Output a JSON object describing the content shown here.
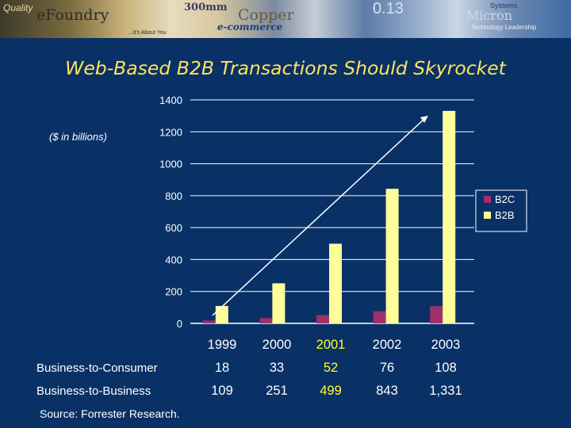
{
  "banner": {
    "t1": "Quality",
    "t2": "eFoundry",
    "t3": "300mm",
    "t4": "Copper",
    "t5": "e-commerce",
    "t6": "...it's About You",
    "t7": "Micron",
    "t8": "Technology Leadership",
    "t9": "0.13",
    "t10": "Systems"
  },
  "title": "Web-Based B2B Transactions Should Skyrocket",
  "unit_label": "($ in billions)",
  "source": "Source: Forrester Research.",
  "colors": {
    "b2c": "#a0306a",
    "b2b": "#fdfd9a",
    "highlight": "#ffff33"
  },
  "chart_data": {
    "type": "bar",
    "categories": [
      "1999",
      "2000",
      "2001",
      "2002",
      "2003"
    ],
    "series": [
      {
        "name": "B2C",
        "values": [
          18,
          33,
          52,
          76,
          108
        ]
      },
      {
        "name": "B2B",
        "values": [
          109,
          251,
          499,
          843,
          1331
        ]
      }
    ],
    "yticks": [
      "0",
      "200",
      "400",
      "600",
      "800",
      "1000",
      "1200",
      "1400"
    ],
    "ylim": [
      0,
      1400
    ],
    "grid": true,
    "legend": "right"
  },
  "table": {
    "years": [
      "1999",
      "2000",
      "2001",
      "2002",
      "2003"
    ],
    "rows": [
      {
        "label": "Business-to-Consumer",
        "cells": [
          "18",
          "33",
          "52",
          "76",
          "108"
        ]
      },
      {
        "label": "Business-to-Business",
        "cells": [
          "109",
          "251",
          "499",
          "843",
          "1,331"
        ]
      }
    ]
  }
}
